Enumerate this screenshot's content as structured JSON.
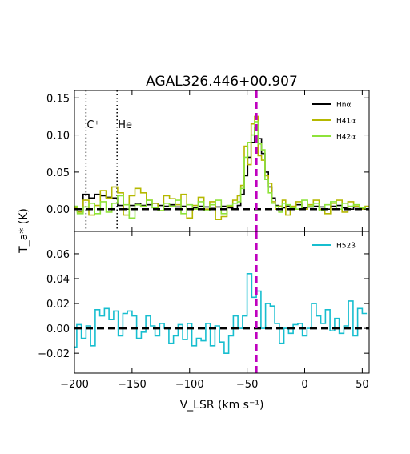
{
  "chart_data": [
    {
      "type": "line",
      "panel": "top",
      "title": "AGAL326.446+00.907",
      "ylim": [
        -0.03,
        0.16
      ],
      "xlim": [
        -200,
        56
      ],
      "yticks": [
        0.0,
        0.05,
        0.1,
        0.15
      ],
      "ytick_labels": [
        "0.00",
        "0.05",
        "0.10",
        "0.15"
      ],
      "legend_position": "top-right",
      "annotations": [
        {
          "label": "C⁺",
          "x": -190
        },
        {
          "label": "He⁺",
          "x": -163
        }
      ],
      "vline_x": -42,
      "baseline_y": 0,
      "series": [
        {
          "name": "Hnα",
          "color": "#000000",
          "x": [
            -200,
            -195,
            -190,
            -185,
            -180,
            -175,
            -170,
            -165,
            -160,
            -155,
            -150,
            -145,
            -140,
            -135,
            -130,
            -125,
            -120,
            -115,
            -110,
            -105,
            -100,
            -95,
            -90,
            -85,
            -80,
            -75,
            -70,
            -65,
            -60,
            -57,
            -54,
            -51,
            -48,
            -45,
            -42,
            -39,
            -36,
            -33,
            -30,
            -27,
            -24,
            -21,
            -18,
            -15,
            -10,
            -5,
            0,
            5,
            10,
            15,
            20,
            25,
            30,
            35,
            40,
            45,
            50,
            55
          ],
          "y": [
            0.0,
            -0.003,
            0.02,
            0.015,
            0.02,
            0.018,
            0.016,
            0.015,
            0.005,
            0.0,
            0.005,
            0.008,
            0.005,
            0.006,
            0.008,
            0.005,
            0.004,
            0.006,
            0.003,
            0.004,
            0.0,
            0.002,
            0.004,
            0.003,
            0.001,
            0.003,
            0.004,
            0.002,
            0.0,
            0.005,
            0.02,
            0.045,
            0.07,
            0.09,
            0.11,
            0.095,
            0.075,
            0.05,
            0.03,
            0.015,
            0.005,
            0.004,
            0.002,
            0.004,
            0.003,
            0.006,
            0.002,
            0.003,
            0.004,
            0.003,
            0.0,
            0.004,
            0.005,
            0.002,
            0.0,
            0.003,
            0.001,
            0.0
          ]
        },
        {
          "name": "H41α",
          "color": "#b5b800",
          "x": [
            -200,
            -195,
            -190,
            -185,
            -180,
            -175,
            -170,
            -165,
            -160,
            -155,
            -150,
            -145,
            -140,
            -135,
            -130,
            -125,
            -120,
            -115,
            -110,
            -105,
            -100,
            -95,
            -90,
            -85,
            -80,
            -75,
            -70,
            -65,
            -60,
            -57,
            -54,
            -51,
            -48,
            -45,
            -42,
            -39,
            -36,
            -33,
            -30,
            -27,
            -24,
            -21,
            -18,
            -15,
            -10,
            -5,
            0,
            5,
            10,
            15,
            20,
            25,
            30,
            35,
            40,
            45,
            50,
            55
          ],
          "y": [
            0.002,
            -0.004,
            0.012,
            -0.008,
            0.005,
            0.025,
            0.015,
            0.03,
            0.022,
            -0.008,
            0.018,
            0.028,
            0.022,
            0.012,
            0.008,
            -0.002,
            0.018,
            0.014,
            0.006,
            0.02,
            -0.012,
            0.005,
            0.016,
            0.0,
            0.01,
            -0.014,
            -0.01,
            0.004,
            0.012,
            0.018,
            0.032,
            0.085,
            0.06,
            0.115,
            0.125,
            0.072,
            0.066,
            0.045,
            0.035,
            0.01,
            0.0,
            0.004,
            0.012,
            -0.008,
            0.004,
            0.01,
            0.0,
            0.006,
            0.012,
            0.0,
            -0.006,
            0.008,
            0.012,
            -0.004,
            0.01,
            0.004,
            0.0,
            0.004
          ]
        },
        {
          "name": "H42α",
          "color": "#8ee33a",
          "x": [
            -200,
            -195,
            -190,
            -185,
            -180,
            -175,
            -170,
            -165,
            -160,
            -155,
            -150,
            -145,
            -140,
            -135,
            -130,
            -125,
            -120,
            -115,
            -110,
            -105,
            -100,
            -95,
            -90,
            -85,
            -80,
            -75,
            -70,
            -65,
            -60,
            -57,
            -54,
            -51,
            -48,
            -45,
            -42,
            -39,
            -36,
            -33,
            -30,
            -27,
            -24,
            -21,
            -18,
            -15,
            -10,
            -5,
            0,
            5,
            10,
            15,
            20,
            25,
            30,
            35,
            40,
            45,
            50,
            55
          ],
          "y": [
            0.004,
            -0.006,
            0.003,
            0.008,
            -0.006,
            0.01,
            -0.004,
            0.008,
            0.018,
            0.006,
            -0.012,
            0.006,
            0.004,
            0.012,
            0.002,
            -0.002,
            0.008,
            0.004,
            0.012,
            -0.006,
            0.006,
            0.0,
            0.01,
            -0.002,
            0.006,
            0.012,
            -0.006,
            0.005,
            0.008,
            0.01,
            0.028,
            0.07,
            0.09,
            0.1,
            0.118,
            0.088,
            0.08,
            0.04,
            0.022,
            0.008,
            0.004,
            -0.004,
            0.008,
            0.006,
            0.002,
            0.0,
            0.012,
            0.004,
            0.008,
            -0.002,
            0.006,
            0.01,
            0.0,
            0.008,
            0.004,
            0.006,
            0.002,
            0.0
          ]
        }
      ]
    },
    {
      "type": "line",
      "panel": "bottom",
      "xlabel": "V_LSR (km s⁻¹)",
      "ylabel": "T_a* (K)",
      "ylim": [
        -0.036,
        0.078
      ],
      "xlim": [
        -200,
        56
      ],
      "yticks": [
        -0.02,
        0.0,
        0.02,
        0.04,
        0.06
      ],
      "ytick_labels": [
        "−0.02",
        "0.00",
        "0.02",
        "0.04",
        "0.06"
      ],
      "xticks": [
        -200,
        -150,
        -100,
        -50,
        0,
        50
      ],
      "xtick_labels": [
        "−200",
        "−150",
        "−100",
        "−50",
        "0",
        "50"
      ],
      "legend_position": "top-right",
      "vline_x": -42,
      "baseline_y": 0,
      "series": [
        {
          "name": "H52β",
          "color": "#17becf",
          "x": [
            -200,
            -196,
            -192,
            -188,
            -184,
            -180,
            -176,
            -172,
            -168,
            -164,
            -160,
            -156,
            -152,
            -148,
            -144,
            -140,
            -136,
            -132,
            -128,
            -124,
            -120,
            -116,
            -112,
            -108,
            -104,
            -100,
            -96,
            -92,
            -88,
            -84,
            -80,
            -76,
            -72,
            -68,
            -64,
            -60,
            -56,
            -52,
            -48,
            -44,
            -40,
            -36,
            -32,
            -28,
            -24,
            -20,
            -16,
            -12,
            -8,
            -4,
            0,
            4,
            8,
            12,
            16,
            20,
            24,
            28,
            32,
            36,
            40,
            44,
            48,
            52
          ],
          "y": [
            -0.015,
            0.003,
            -0.008,
            0.002,
            -0.014,
            0.015,
            0.01,
            0.016,
            0.007,
            0.014,
            -0.006,
            0.012,
            0.014,
            0.01,
            -0.008,
            -0.003,
            0.01,
            0.002,
            -0.006,
            0.004,
            0.0,
            -0.012,
            -0.006,
            0.003,
            -0.009,
            0.004,
            -0.014,
            -0.008,
            -0.01,
            0.004,
            -0.014,
            0.002,
            -0.011,
            -0.02,
            -0.006,
            0.01,
            0.0,
            0.01,
            0.044,
            0.025,
            0.03,
            0.0,
            0.02,
            0.018,
            0.004,
            -0.012,
            0.0,
            -0.004,
            0.003,
            0.004,
            -0.006,
            0.0,
            0.02,
            0.01,
            0.004,
            0.015,
            -0.002,
            0.008,
            -0.004,
            0.002,
            0.022,
            -0.006,
            0.016,
            0.012
          ]
        }
      ]
    }
  ]
}
